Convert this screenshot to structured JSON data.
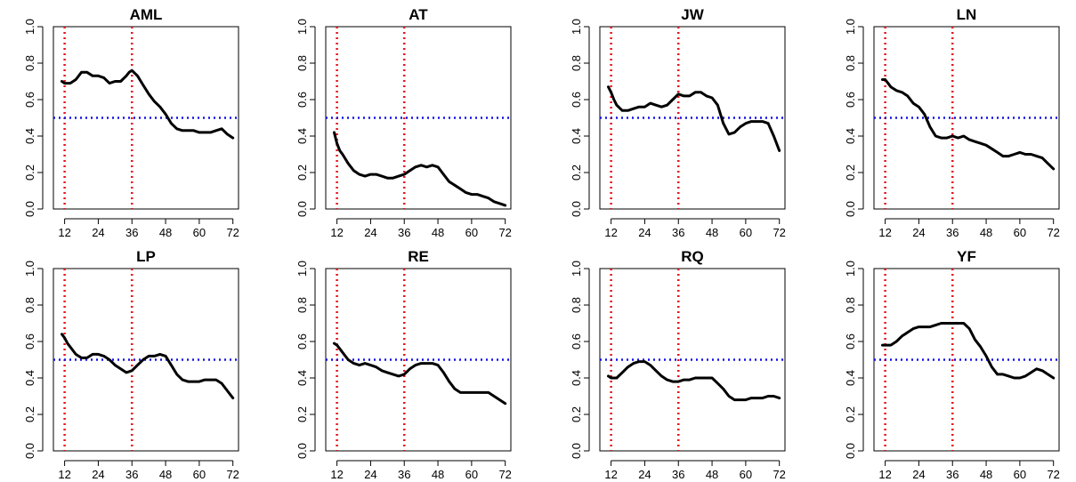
{
  "chart_data": [
    {
      "type": "line",
      "title": "AML",
      "xlim": [
        8,
        74
      ],
      "ylim": [
        0,
        1
      ],
      "xticks": [
        12,
        24,
        36,
        48,
        60,
        72
      ],
      "yticks": [
        0.0,
        0.2,
        0.4,
        0.6,
        0.8,
        1.0
      ],
      "ytick_labels": [
        "0.0",
        "0.2",
        "0.4",
        "0.6",
        "0.8",
        "1.0"
      ],
      "vlines": [
        12,
        36
      ],
      "hline": 0.5,
      "series": [
        {
          "x": [
            11,
            12,
            13,
            14,
            16,
            18,
            20,
            22,
            24,
            26,
            28,
            30,
            32,
            34,
            35,
            36,
            38,
            40,
            42,
            44,
            46,
            48,
            50,
            52,
            54,
            56,
            58,
            60,
            62,
            64,
            66,
            68,
            70,
            72
          ],
          "y": [
            0.7,
            0.69,
            0.69,
            0.69,
            0.71,
            0.75,
            0.75,
            0.73,
            0.73,
            0.72,
            0.69,
            0.7,
            0.7,
            0.73,
            0.75,
            0.76,
            0.73,
            0.68,
            0.63,
            0.59,
            0.56,
            0.52,
            0.47,
            0.44,
            0.43,
            0.43,
            0.43,
            0.42,
            0.42,
            0.42,
            0.43,
            0.44,
            0.41,
            0.39
          ]
        }
      ]
    },
    {
      "type": "line",
      "title": "AT",
      "xlim": [
        8,
        74
      ],
      "ylim": [
        0,
        1
      ],
      "xticks": [
        12,
        24,
        36,
        48,
        60,
        72
      ],
      "yticks": [
        0.0,
        0.2,
        0.4,
        0.6,
        0.8,
        1.0
      ],
      "ytick_labels": [
        "0.0",
        "0.2",
        "0.4",
        "0.6",
        "0.8",
        "1.0"
      ],
      "vlines": [
        12,
        36
      ],
      "hline": 0.5,
      "series": [
        {
          "x": [
            11,
            12,
            13,
            14,
            16,
            18,
            20,
            22,
            24,
            26,
            28,
            30,
            32,
            34,
            36,
            38,
            40,
            42,
            44,
            46,
            48,
            50,
            52,
            54,
            56,
            58,
            60,
            62,
            64,
            66,
            68,
            70,
            72
          ],
          "y": [
            0.42,
            0.36,
            0.32,
            0.3,
            0.25,
            0.21,
            0.19,
            0.18,
            0.19,
            0.19,
            0.18,
            0.17,
            0.17,
            0.18,
            0.19,
            0.21,
            0.23,
            0.24,
            0.23,
            0.24,
            0.23,
            0.19,
            0.15,
            0.13,
            0.11,
            0.09,
            0.08,
            0.08,
            0.07,
            0.06,
            0.04,
            0.03,
            0.02
          ]
        }
      ]
    },
    {
      "type": "line",
      "title": "JW",
      "xlim": [
        8,
        74
      ],
      "ylim": [
        0,
        1
      ],
      "xticks": [
        12,
        24,
        36,
        48,
        60,
        72
      ],
      "yticks": [
        0.0,
        0.2,
        0.4,
        0.6,
        0.8,
        1.0
      ],
      "ytick_labels": [
        "0.0",
        "0.2",
        "0.4",
        "0.6",
        "0.8",
        "1.0"
      ],
      "vlines": [
        12,
        36
      ],
      "hline": 0.5,
      "series": [
        {
          "x": [
            11,
            12,
            13,
            14,
            16,
            18,
            20,
            22,
            24,
            26,
            28,
            30,
            32,
            34,
            36,
            38,
            40,
            42,
            44,
            46,
            48,
            50,
            52,
            54,
            56,
            58,
            60,
            62,
            64,
            66,
            68,
            70,
            72
          ],
          "y": [
            0.67,
            0.64,
            0.6,
            0.57,
            0.54,
            0.54,
            0.55,
            0.56,
            0.56,
            0.58,
            0.57,
            0.56,
            0.57,
            0.6,
            0.63,
            0.62,
            0.62,
            0.64,
            0.64,
            0.62,
            0.61,
            0.57,
            0.47,
            0.41,
            0.42,
            0.45,
            0.47,
            0.48,
            0.48,
            0.48,
            0.47,
            0.4,
            0.32
          ]
        }
      ]
    },
    {
      "type": "line",
      "title": "LN",
      "xlim": [
        8,
        74
      ],
      "ylim": [
        0,
        1
      ],
      "xticks": [
        12,
        24,
        36,
        48,
        60,
        72
      ],
      "yticks": [
        0.0,
        0.2,
        0.4,
        0.6,
        0.8,
        1.0
      ],
      "ytick_labels": [
        "0.0",
        "0.2",
        "0.4",
        "0.6",
        "0.8",
        "1.0"
      ],
      "vlines": [
        12,
        36
      ],
      "hline": 0.5,
      "series": [
        {
          "x": [
            11,
            12,
            13,
            14,
            16,
            18,
            20,
            22,
            24,
            26,
            28,
            30,
            32,
            34,
            36,
            38,
            40,
            42,
            44,
            46,
            48,
            50,
            52,
            54,
            56,
            58,
            60,
            62,
            64,
            66,
            68,
            70,
            72
          ],
          "y": [
            0.71,
            0.71,
            0.69,
            0.67,
            0.65,
            0.64,
            0.62,
            0.58,
            0.56,
            0.52,
            0.45,
            0.4,
            0.39,
            0.39,
            0.4,
            0.39,
            0.4,
            0.38,
            0.37,
            0.36,
            0.35,
            0.33,
            0.31,
            0.29,
            0.29,
            0.3,
            0.31,
            0.3,
            0.3,
            0.29,
            0.28,
            0.25,
            0.22
          ]
        }
      ]
    },
    {
      "type": "line",
      "title": "LP",
      "xlim": [
        8,
        74
      ],
      "ylim": [
        0,
        1
      ],
      "xticks": [
        12,
        24,
        36,
        48,
        60,
        72
      ],
      "yticks": [
        0.0,
        0.2,
        0.4,
        0.6,
        0.8,
        1.0
      ],
      "ytick_labels": [
        "0.0",
        "0.2",
        "0.4",
        "0.6",
        "0.8",
        "1.0"
      ],
      "vlines": [
        12,
        36
      ],
      "hline": 0.5,
      "series": [
        {
          "x": [
            11,
            12,
            13,
            14,
            16,
            18,
            20,
            22,
            24,
            26,
            28,
            30,
            32,
            34,
            36,
            38,
            40,
            42,
            44,
            46,
            48,
            50,
            52,
            54,
            56,
            58,
            60,
            62,
            64,
            66,
            68,
            70,
            72
          ],
          "y": [
            0.64,
            0.62,
            0.59,
            0.57,
            0.53,
            0.51,
            0.51,
            0.53,
            0.53,
            0.52,
            0.5,
            0.47,
            0.45,
            0.43,
            0.44,
            0.47,
            0.5,
            0.52,
            0.52,
            0.53,
            0.52,
            0.47,
            0.42,
            0.39,
            0.38,
            0.38,
            0.38,
            0.39,
            0.39,
            0.39,
            0.37,
            0.33,
            0.29
          ]
        }
      ]
    },
    {
      "type": "line",
      "title": "RE",
      "xlim": [
        8,
        74
      ],
      "ylim": [
        0,
        1
      ],
      "xticks": [
        12,
        24,
        36,
        48,
        60,
        72
      ],
      "yticks": [
        0.0,
        0.2,
        0.4,
        0.6,
        0.8,
        1.0
      ],
      "ytick_labels": [
        "0.0",
        "0.2",
        "0.4",
        "0.6",
        "0.8",
        "1.0"
      ],
      "vlines": [
        12,
        36
      ],
      "hline": 0.5,
      "series": [
        {
          "x": [
            11,
            12,
            13,
            14,
            16,
            18,
            20,
            22,
            24,
            26,
            28,
            30,
            32,
            34,
            36,
            38,
            40,
            42,
            44,
            46,
            48,
            50,
            52,
            54,
            56,
            58,
            60,
            62,
            64,
            66,
            68,
            70,
            72
          ],
          "y": [
            0.59,
            0.58,
            0.56,
            0.54,
            0.5,
            0.48,
            0.47,
            0.48,
            0.47,
            0.46,
            0.44,
            0.43,
            0.42,
            0.41,
            0.42,
            0.45,
            0.47,
            0.48,
            0.48,
            0.48,
            0.47,
            0.43,
            0.38,
            0.34,
            0.32,
            0.32,
            0.32,
            0.32,
            0.32,
            0.32,
            0.3,
            0.28,
            0.26
          ]
        }
      ]
    },
    {
      "type": "line",
      "title": "RQ",
      "xlim": [
        8,
        74
      ],
      "ylim": [
        0,
        1
      ],
      "xticks": [
        12,
        24,
        36,
        48,
        60,
        72
      ],
      "yticks": [
        0.0,
        0.2,
        0.4,
        0.6,
        0.8,
        1.0
      ],
      "ytick_labels": [
        "0.0",
        "0.2",
        "0.4",
        "0.6",
        "0.8",
        "1.0"
      ],
      "vlines": [
        12,
        36
      ],
      "hline": 0.5,
      "series": [
        {
          "x": [
            11,
            12,
            13,
            14,
            16,
            18,
            20,
            22,
            24,
            26,
            28,
            30,
            32,
            34,
            36,
            38,
            40,
            42,
            44,
            46,
            48,
            50,
            52,
            54,
            56,
            58,
            60,
            62,
            64,
            66,
            68,
            70,
            72
          ],
          "y": [
            0.41,
            0.4,
            0.4,
            0.4,
            0.43,
            0.46,
            0.48,
            0.49,
            0.49,
            0.47,
            0.44,
            0.41,
            0.39,
            0.38,
            0.38,
            0.39,
            0.39,
            0.4,
            0.4,
            0.4,
            0.4,
            0.37,
            0.34,
            0.3,
            0.28,
            0.28,
            0.28,
            0.29,
            0.29,
            0.29,
            0.3,
            0.3,
            0.29
          ]
        }
      ]
    },
    {
      "type": "line",
      "title": "YF",
      "xlim": [
        8,
        74
      ],
      "ylim": [
        0,
        1
      ],
      "xticks": [
        12,
        24,
        36,
        48,
        60,
        72
      ],
      "yticks": [
        0.0,
        0.2,
        0.4,
        0.6,
        0.8,
        1.0
      ],
      "ytick_labels": [
        "0.0",
        "0.2",
        "0.4",
        "0.6",
        "0.8",
        "1.0"
      ],
      "vlines": [
        12,
        36
      ],
      "hline": 0.5,
      "series": [
        {
          "x": [
            11,
            12,
            13,
            14,
            16,
            18,
            20,
            22,
            24,
            26,
            28,
            30,
            32,
            34,
            36,
            38,
            40,
            42,
            44,
            46,
            48,
            50,
            52,
            54,
            56,
            58,
            60,
            62,
            64,
            66,
            68,
            70,
            72
          ],
          "y": [
            0.58,
            0.58,
            0.58,
            0.58,
            0.6,
            0.63,
            0.65,
            0.67,
            0.68,
            0.68,
            0.68,
            0.69,
            0.7,
            0.7,
            0.7,
            0.7,
            0.7,
            0.67,
            0.61,
            0.57,
            0.52,
            0.46,
            0.42,
            0.42,
            0.41,
            0.4,
            0.4,
            0.41,
            0.43,
            0.45,
            0.44,
            0.42,
            0.4
          ]
        }
      ]
    }
  ],
  "colors": {
    "series": "#000000",
    "vline": "#e8141b",
    "hline": "#1414e6",
    "axis": "#000000"
  }
}
